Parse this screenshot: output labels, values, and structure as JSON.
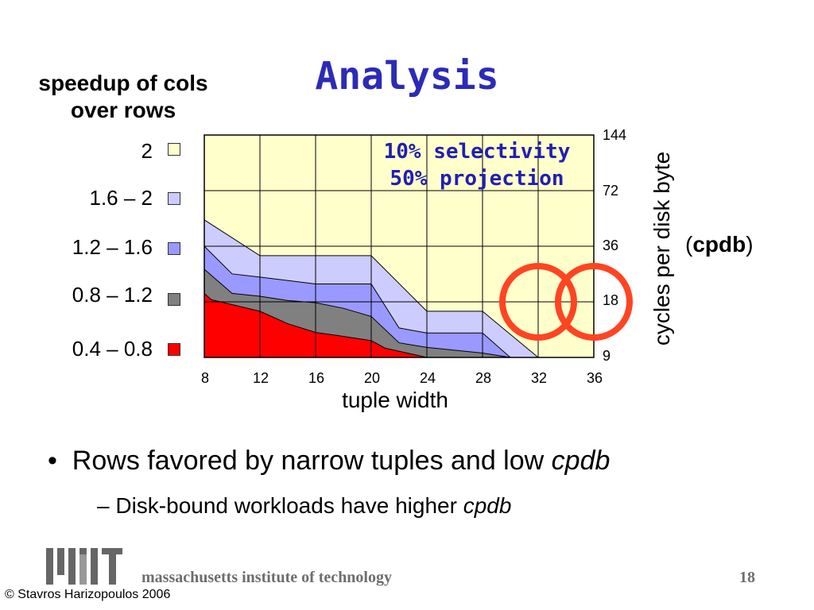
{
  "slide": {
    "title": "Analysis",
    "bullet": {
      "prefix": "Rows favored by narrow tuples and low ",
      "emph": "cpdb"
    },
    "sub_bullet": {
      "prefix": "Disk-bound workloads have higher ",
      "emph": "cpdb"
    },
    "footer": {
      "institution": "massachusetts institute of technology",
      "page": "18",
      "copyright": "© Stavros Harizopoulos 2006"
    }
  },
  "chart_data": {
    "type": "area",
    "legend_title": "speedup of cols over rows",
    "legend": [
      {
        "label": "2",
        "color": "#ffffcc"
      },
      {
        "label": "1.6 – 2",
        "color": "#ccccff"
      },
      {
        "label": "1.2 – 1.6",
        "color": "#9999ff"
      },
      {
        "label": "0.8 – 1.2",
        "color": "#808080"
      },
      {
        "label": "0.4 – 0.8",
        "color": "#ff0000"
      }
    ],
    "annotation": [
      "10% selectivity",
      "50% projection"
    ],
    "xlabel": "tuple width",
    "ylabel": "cycles per disk byte",
    "ylabel_secondary": {
      "open": "(",
      "bold": "cpdb",
      "close": ")"
    },
    "x_ticks": [
      "8",
      "12",
      "16",
      "20",
      "24",
      "28",
      "32",
      "36"
    ],
    "y_ticks": [
      "9",
      "18",
      "36",
      "72",
      "144"
    ],
    "xlim": [
      8,
      36
    ],
    "ylim": [
      9,
      144
    ],
    "y_scale": "log2",
    "grid": true,
    "boundaries": [
      {
        "name": "0.4 – 0.8 / 0.8 – 1.2",
        "x": [
          8,
          8.5,
          12,
          14,
          16,
          18,
          20,
          21,
          24
        ],
        "y": [
          20,
          18.5,
          16,
          13.7,
          12.3,
          11.7,
          11.1,
          10.1,
          9
        ]
      },
      {
        "name": "0.8 – 1.2 / 1.2 – 1.6",
        "x": [
          8,
          10,
          12,
          14,
          16,
          18,
          20,
          22,
          24,
          28,
          30
        ],
        "y": [
          27,
          20,
          19.3,
          18.3,
          17.8,
          16.6,
          15,
          10.8,
          10.2,
          9.5,
          9
        ]
      },
      {
        "name": "1.2 – 1.6 / 1.6 – 2",
        "x": [
          8,
          10,
          12,
          16,
          20,
          22,
          24,
          28,
          30
        ],
        "y": [
          36,
          25.5,
          24.5,
          22.5,
          22.5,
          13,
          12.2,
          12.2,
          9
        ]
      },
      {
        "name": "1.6 – 2 / 2",
        "x": [
          8,
          12,
          16,
          20,
          24,
          28,
          32
        ],
        "y": [
          50,
          32,
          32,
          32,
          16,
          16,
          9
        ]
      }
    ],
    "highlight_circles_x": [
      32,
      36
    ]
  }
}
